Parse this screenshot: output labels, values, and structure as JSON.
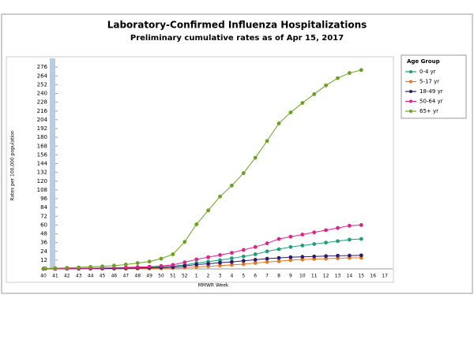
{
  "chart_data": {
    "type": "line",
    "title": "Laboratory-Confirmed Influenza Hospitalizations",
    "subtitle": "Preliminary cumulative rates as of Apr 15, 2017",
    "x_label": "MMWR Week",
    "y_label": "Rates per 100,000 population",
    "legend_title": "Age Group",
    "legend_position": "right",
    "grid": false,
    "categories": [
      "40",
      "41",
      "42",
      "43",
      "44",
      "45",
      "46",
      "47",
      "48",
      "49",
      "50",
      "51",
      "52",
      "1",
      "2",
      "3",
      "4",
      "5",
      "6",
      "7",
      "8",
      "9",
      "10",
      "11",
      "12",
      "13",
      "14",
      "15",
      "16",
      "17"
    ],
    "ylim": [
      0,
      288
    ],
    "yticks": [
      0,
      12,
      24,
      36,
      48,
      60,
      72,
      84,
      96,
      108,
      120,
      132,
      144,
      156,
      168,
      180,
      192,
      204,
      216,
      228,
      240,
      252,
      264,
      276
    ],
    "series": [
      {
        "name": "0-4 yr",
        "color": "#1f9e7a",
        "values": [
          0.2,
          0.3,
          0.4,
          0.5,
          0.6,
          0.8,
          1,
          1.2,
          1.5,
          2,
          2.8,
          3.8,
          5.5,
          8,
          10,
          12,
          14.5,
          17,
          20,
          24,
          27,
          30,
          32,
          34,
          36,
          38,
          40,
          41,
          null,
          null
        ]
      },
      {
        "name": "5-17 yr",
        "color": "#e8771f",
        "values": [
          0.05,
          0.1,
          0.15,
          0.2,
          0.25,
          0.3,
          0.35,
          0.4,
          0.5,
          0.6,
          0.8,
          1.1,
          1.8,
          2.8,
          3.5,
          4.5,
          5.5,
          6.5,
          8,
          9.5,
          10.5,
          12,
          12.8,
          13.5,
          14,
          14.5,
          15,
          15.2,
          null,
          null
        ]
      },
      {
        "name": "18-49 yr",
        "color": "#2c1a6b",
        "values": [
          0.1,
          0.2,
          0.3,
          0.4,
          0.5,
          0.6,
          0.7,
          0.9,
          1.1,
          1.4,
          1.8,
          2.5,
          4,
          6,
          7,
          8.5,
          9.5,
          11,
          12.5,
          14,
          15,
          16,
          16.5,
          17,
          17.5,
          18,
          18.2,
          18.5,
          null,
          null
        ]
      },
      {
        "name": "50-64 yr",
        "color": "#e0218a",
        "values": [
          0.2,
          0.4,
          0.6,
          0.8,
          1,
          1.3,
          1.6,
          2,
          2.5,
          3,
          4,
          5.5,
          9,
          13,
          16,
          19,
          22,
          26,
          30,
          35,
          41,
          44,
          47,
          50,
          53,
          56,
          59,
          60,
          null,
          null
        ]
      },
      {
        "name": "65+ yr",
        "color": "#6aa121",
        "values": [
          0.5,
          1,
          1.5,
          2,
          2.8,
          3.5,
          4.5,
          6,
          8,
          10,
          14,
          20,
          37,
          61,
          80,
          99,
          114,
          131,
          152,
          175,
          199,
          214,
          227,
          239,
          251,
          261,
          268,
          272,
          null,
          null
        ]
      }
    ]
  }
}
